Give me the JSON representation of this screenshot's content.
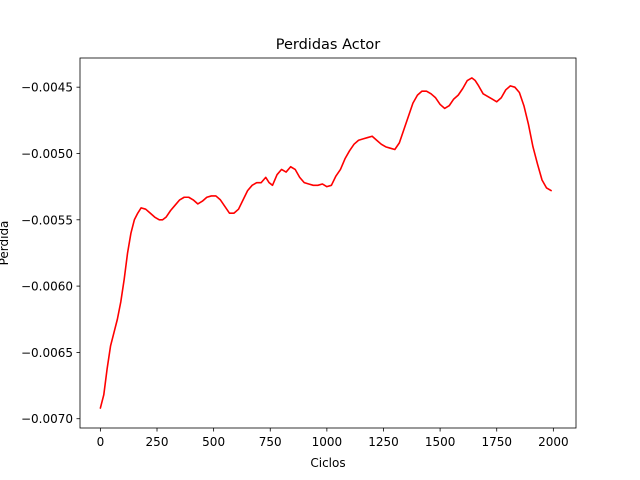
{
  "chart_data": {
    "type": "line",
    "title": "Perdidas Actor",
    "xlabel": "Ciclos",
    "ylabel": "Perdida",
    "xlim": [
      -90,
      2100
    ],
    "ylim": [
      -0.00707,
      -0.00428
    ],
    "xticks": [
      0,
      250,
      500,
      750,
      1000,
      1250,
      1500,
      1750,
      2000
    ],
    "xtick_labels": [
      "0",
      "250",
      "500",
      "750",
      "1000",
      "1250",
      "1500",
      "1750",
      "2000"
    ],
    "yticks": [
      -0.0045,
      -0.005,
      -0.0055,
      -0.006,
      -0.0065,
      -0.007
    ],
    "ytick_labels": [
      "−0.0045",
      "−0.0050",
      "−0.0055",
      "−0.0060",
      "−0.0065",
      "−0.0070"
    ],
    "grid": false,
    "series": [
      {
        "color": "#ff0000",
        "x": [
          0,
          15,
          30,
          45,
          60,
          75,
          90,
          105,
          120,
          135,
          150,
          165,
          180,
          200,
          220,
          240,
          260,
          275,
          290,
          310,
          330,
          350,
          370,
          390,
          410,
          430,
          450,
          470,
          490,
          510,
          530,
          550,
          570,
          590,
          610,
          630,
          650,
          670,
          690,
          710,
          730,
          745,
          760,
          780,
          800,
          820,
          840,
          860,
          880,
          900,
          920,
          940,
          960,
          980,
          1000,
          1020,
          1040,
          1060,
          1080,
          1100,
          1120,
          1140,
          1160,
          1180,
          1200,
          1220,
          1240,
          1260,
          1280,
          1300,
          1320,
          1340,
          1360,
          1380,
          1400,
          1420,
          1440,
          1460,
          1480,
          1500,
          1520,
          1540,
          1560,
          1580,
          1600,
          1620,
          1640,
          1655,
          1670,
          1690,
          1710,
          1730,
          1750,
          1770,
          1790,
          1810,
          1830,
          1850,
          1870,
          1890,
          1910,
          1930,
          1950,
          1970,
          1990
        ],
        "y": [
          -0.00692,
          -0.00682,
          -0.00662,
          -0.00645,
          -0.00635,
          -0.00625,
          -0.00612,
          -0.00595,
          -0.00575,
          -0.0056,
          -0.0055,
          -0.00545,
          -0.00541,
          -0.00542,
          -0.00545,
          -0.00548,
          -0.0055,
          -0.0055,
          -0.00548,
          -0.00543,
          -0.00539,
          -0.00535,
          -0.00533,
          -0.00533,
          -0.00535,
          -0.00538,
          -0.00536,
          -0.00533,
          -0.00532,
          -0.00532,
          -0.00535,
          -0.0054,
          -0.00545,
          -0.00545,
          -0.00542,
          -0.00535,
          -0.00528,
          -0.00524,
          -0.00522,
          -0.00522,
          -0.00518,
          -0.00522,
          -0.00524,
          -0.00516,
          -0.00512,
          -0.00514,
          -0.0051,
          -0.00512,
          -0.00518,
          -0.00522,
          -0.00523,
          -0.00524,
          -0.00524,
          -0.00523,
          -0.00525,
          -0.00524,
          -0.00517,
          -0.00512,
          -0.00504,
          -0.00498,
          -0.00493,
          -0.0049,
          -0.00489,
          -0.00488,
          -0.00487,
          -0.0049,
          -0.00493,
          -0.00495,
          -0.00496,
          -0.00497,
          -0.00492,
          -0.00482,
          -0.00472,
          -0.00462,
          -0.00456,
          -0.00453,
          -0.00453,
          -0.00455,
          -0.00458,
          -0.00463,
          -0.00466,
          -0.00464,
          -0.00459,
          -0.00456,
          -0.00451,
          -0.00445,
          -0.00443,
          -0.00445,
          -0.00449,
          -0.00455,
          -0.00457,
          -0.00459,
          -0.00461,
          -0.00458,
          -0.00452,
          -0.00449,
          -0.0045,
          -0.00454,
          -0.00464,
          -0.00478,
          -0.00495,
          -0.00508,
          -0.0052,
          -0.00526,
          -0.00528
        ]
      }
    ]
  }
}
